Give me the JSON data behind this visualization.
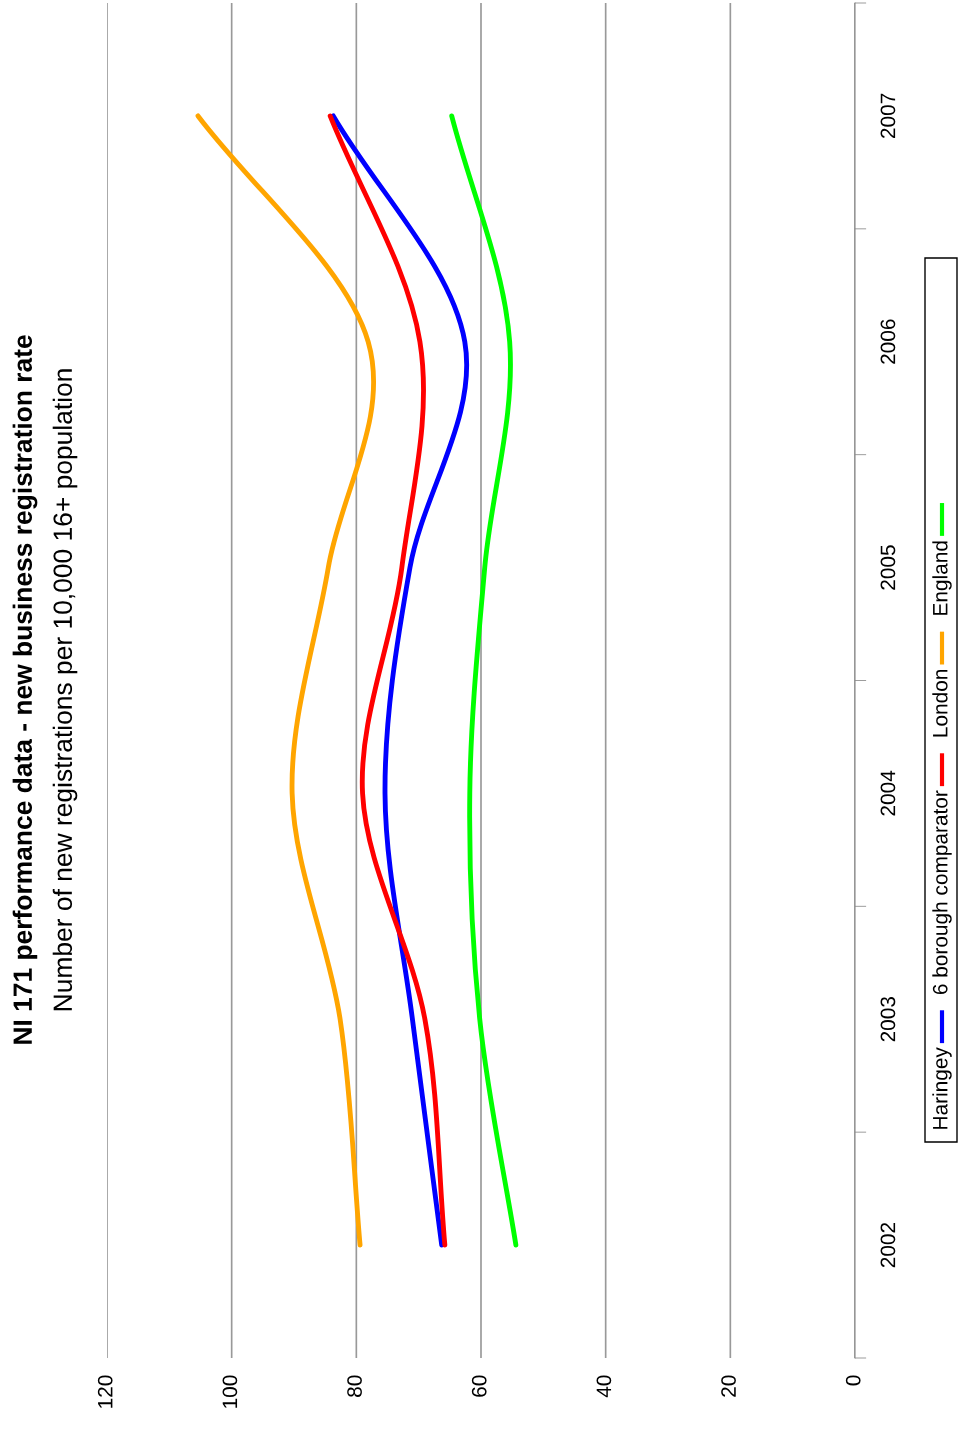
{
  "chart_data": {
    "type": "line",
    "title": "NI 171 performance data - new business registration rate",
    "subtitle": "Number of new registrations per 10,000 16+ population",
    "orientation": "horizontal",
    "categories": [
      "2007",
      "2006",
      "2005",
      "2004",
      "2003",
      "2002"
    ],
    "series": [
      {
        "name": "Haringey",
        "color": "#0000ff",
        "values": [
          83.7,
          62.6,
          71.4,
          75.4,
          71,
          66.3
        ]
      },
      {
        "name": "6 borough comparator",
        "color": "#ff0000",
        "values": [
          84.2,
          69.8,
          72.7,
          79,
          69,
          65.8
        ]
      },
      {
        "name": "London",
        "color": "#ffa500",
        "values": [
          105.4,
          78.1,
          84.5,
          90.3,
          82.6,
          79.4
        ]
      },
      {
        "name": "England",
        "color": "#00ff00",
        "values": [
          64.7,
          55.4,
          59.4,
          61.8,
          60.2,
          54.4
        ]
      }
    ],
    "xlim": [
      120,
      0
    ],
    "xticks": [
      120,
      100,
      80,
      60,
      40,
      20,
      0
    ],
    "grid": "x",
    "legend": "right",
    "marker": "none",
    "line_style": "solid"
  }
}
